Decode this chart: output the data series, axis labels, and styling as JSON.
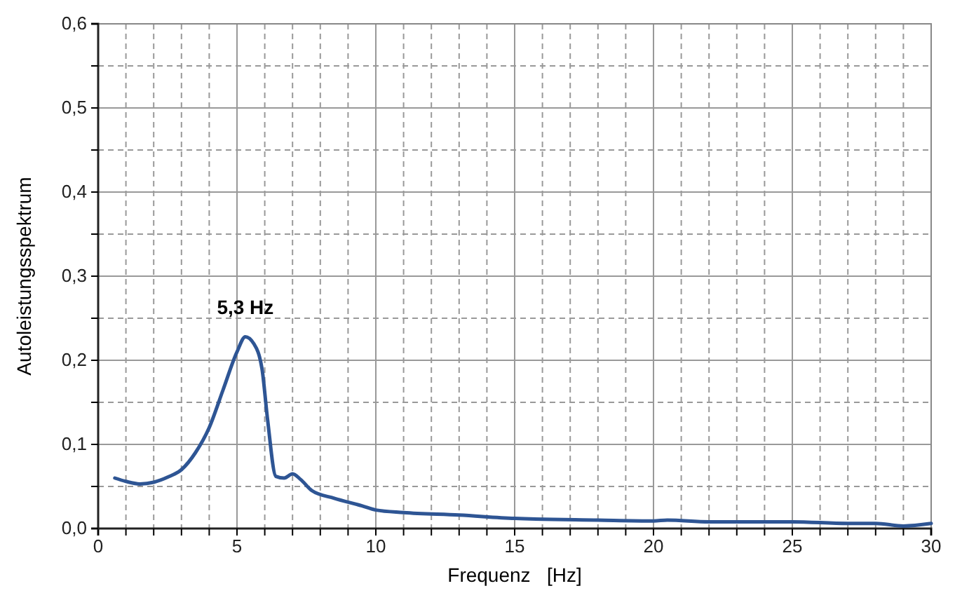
{
  "chart_data": {
    "type": "line",
    "xlabel": "Frequenz   [Hz]",
    "ylabel": "Autoleistungsspektrum",
    "x": [
      0.6,
      1.0,
      1.5,
      2,
      2.5,
      3,
      3.5,
      4,
      4.5,
      5,
      5.3,
      5.6,
      5.9,
      6.1,
      6.4,
      6.7,
      7.0,
      7.3,
      7.7,
      8.5,
      9.5,
      10,
      11,
      13,
      15,
      18,
      20,
      20.5,
      22,
      25,
      27,
      28,
      29,
      30
    ],
    "series": [
      {
        "color": "#2e5594",
        "values": [
          0.06,
          0.056,
          0.053,
          0.055,
          0.061,
          0.07,
          0.09,
          0.12,
          0.165,
          0.21,
          0.228,
          0.22,
          0.19,
          0.13,
          0.062,
          0.06,
          0.065,
          0.058,
          0.045,
          0.036,
          0.027,
          0.022,
          0.019,
          0.016,
          0.012,
          0.01,
          0.009,
          0.01,
          0.008,
          0.008,
          0.006,
          0.006,
          0.003,
          0.006
        ]
      }
    ],
    "xlim": [
      0,
      30
    ],
    "xticks": [
      0,
      {
        "value": 1,
        "label": null
      },
      {
        "value": 2,
        "label": null
      },
      {
        "value": 3,
        "label": null
      },
      {
        "value": 4,
        "label": null
      },
      5,
      {
        "value": 6,
        "label": null
      },
      {
        "value": 7,
        "label": null
      },
      {
        "value": 8,
        "label": null
      },
      {
        "value": 9,
        "label": null
      },
      10,
      {
        "value": 11,
        "label": null
      },
      {
        "value": 12,
        "label": null
      },
      {
        "value": 13,
        "label": null
      },
      {
        "value": 14,
        "label": null
      },
      15,
      {
        "value": 16,
        "label": null
      },
      {
        "value": 17,
        "label": null
      },
      {
        "value": 18,
        "label": null
      },
      {
        "value": 19,
        "label": null
      },
      20,
      {
        "value": 21,
        "label": null
      },
      {
        "value": 22,
        "label": null
      },
      {
        "value": 23,
        "label": null
      },
      {
        "value": 24,
        "label": null
      },
      25,
      {
        "value": 26,
        "label": null
      },
      {
        "value": 27,
        "label": null
      },
      {
        "value": 28,
        "label": null
      },
      {
        "value": 29,
        "label": null
      },
      30
    ],
    "ylim": [
      0,
      0.6
    ],
    "yticks": [
      {
        "value": 0,
        "label": "0,0"
      },
      {
        "value": 0.05,
        "label": null
      },
      {
        "value": 0.1,
        "label": "0,1"
      },
      {
        "value": 0.15,
        "label": null
      },
      {
        "value": 0.2,
        "label": "0,2"
      },
      {
        "value": 0.25,
        "label": null
      },
      {
        "value": 0.3,
        "label": "0,3"
      },
      {
        "value": 0.35,
        "label": null
      },
      {
        "value": 0.4,
        "label": "0,4"
      },
      {
        "value": 0.45,
        "label": null
      },
      {
        "value": 0.5,
        "label": "0,5"
      },
      {
        "value": 0.55,
        "label": null
      },
      {
        "value": 0.6,
        "label": "0,6"
      }
    ],
    "grid": true,
    "marker": "none",
    "line_style": "solid",
    "annotations": [
      {
        "text": "5,3 Hz",
        "x": 5.3,
        "y": 0.228
      }
    ]
  }
}
